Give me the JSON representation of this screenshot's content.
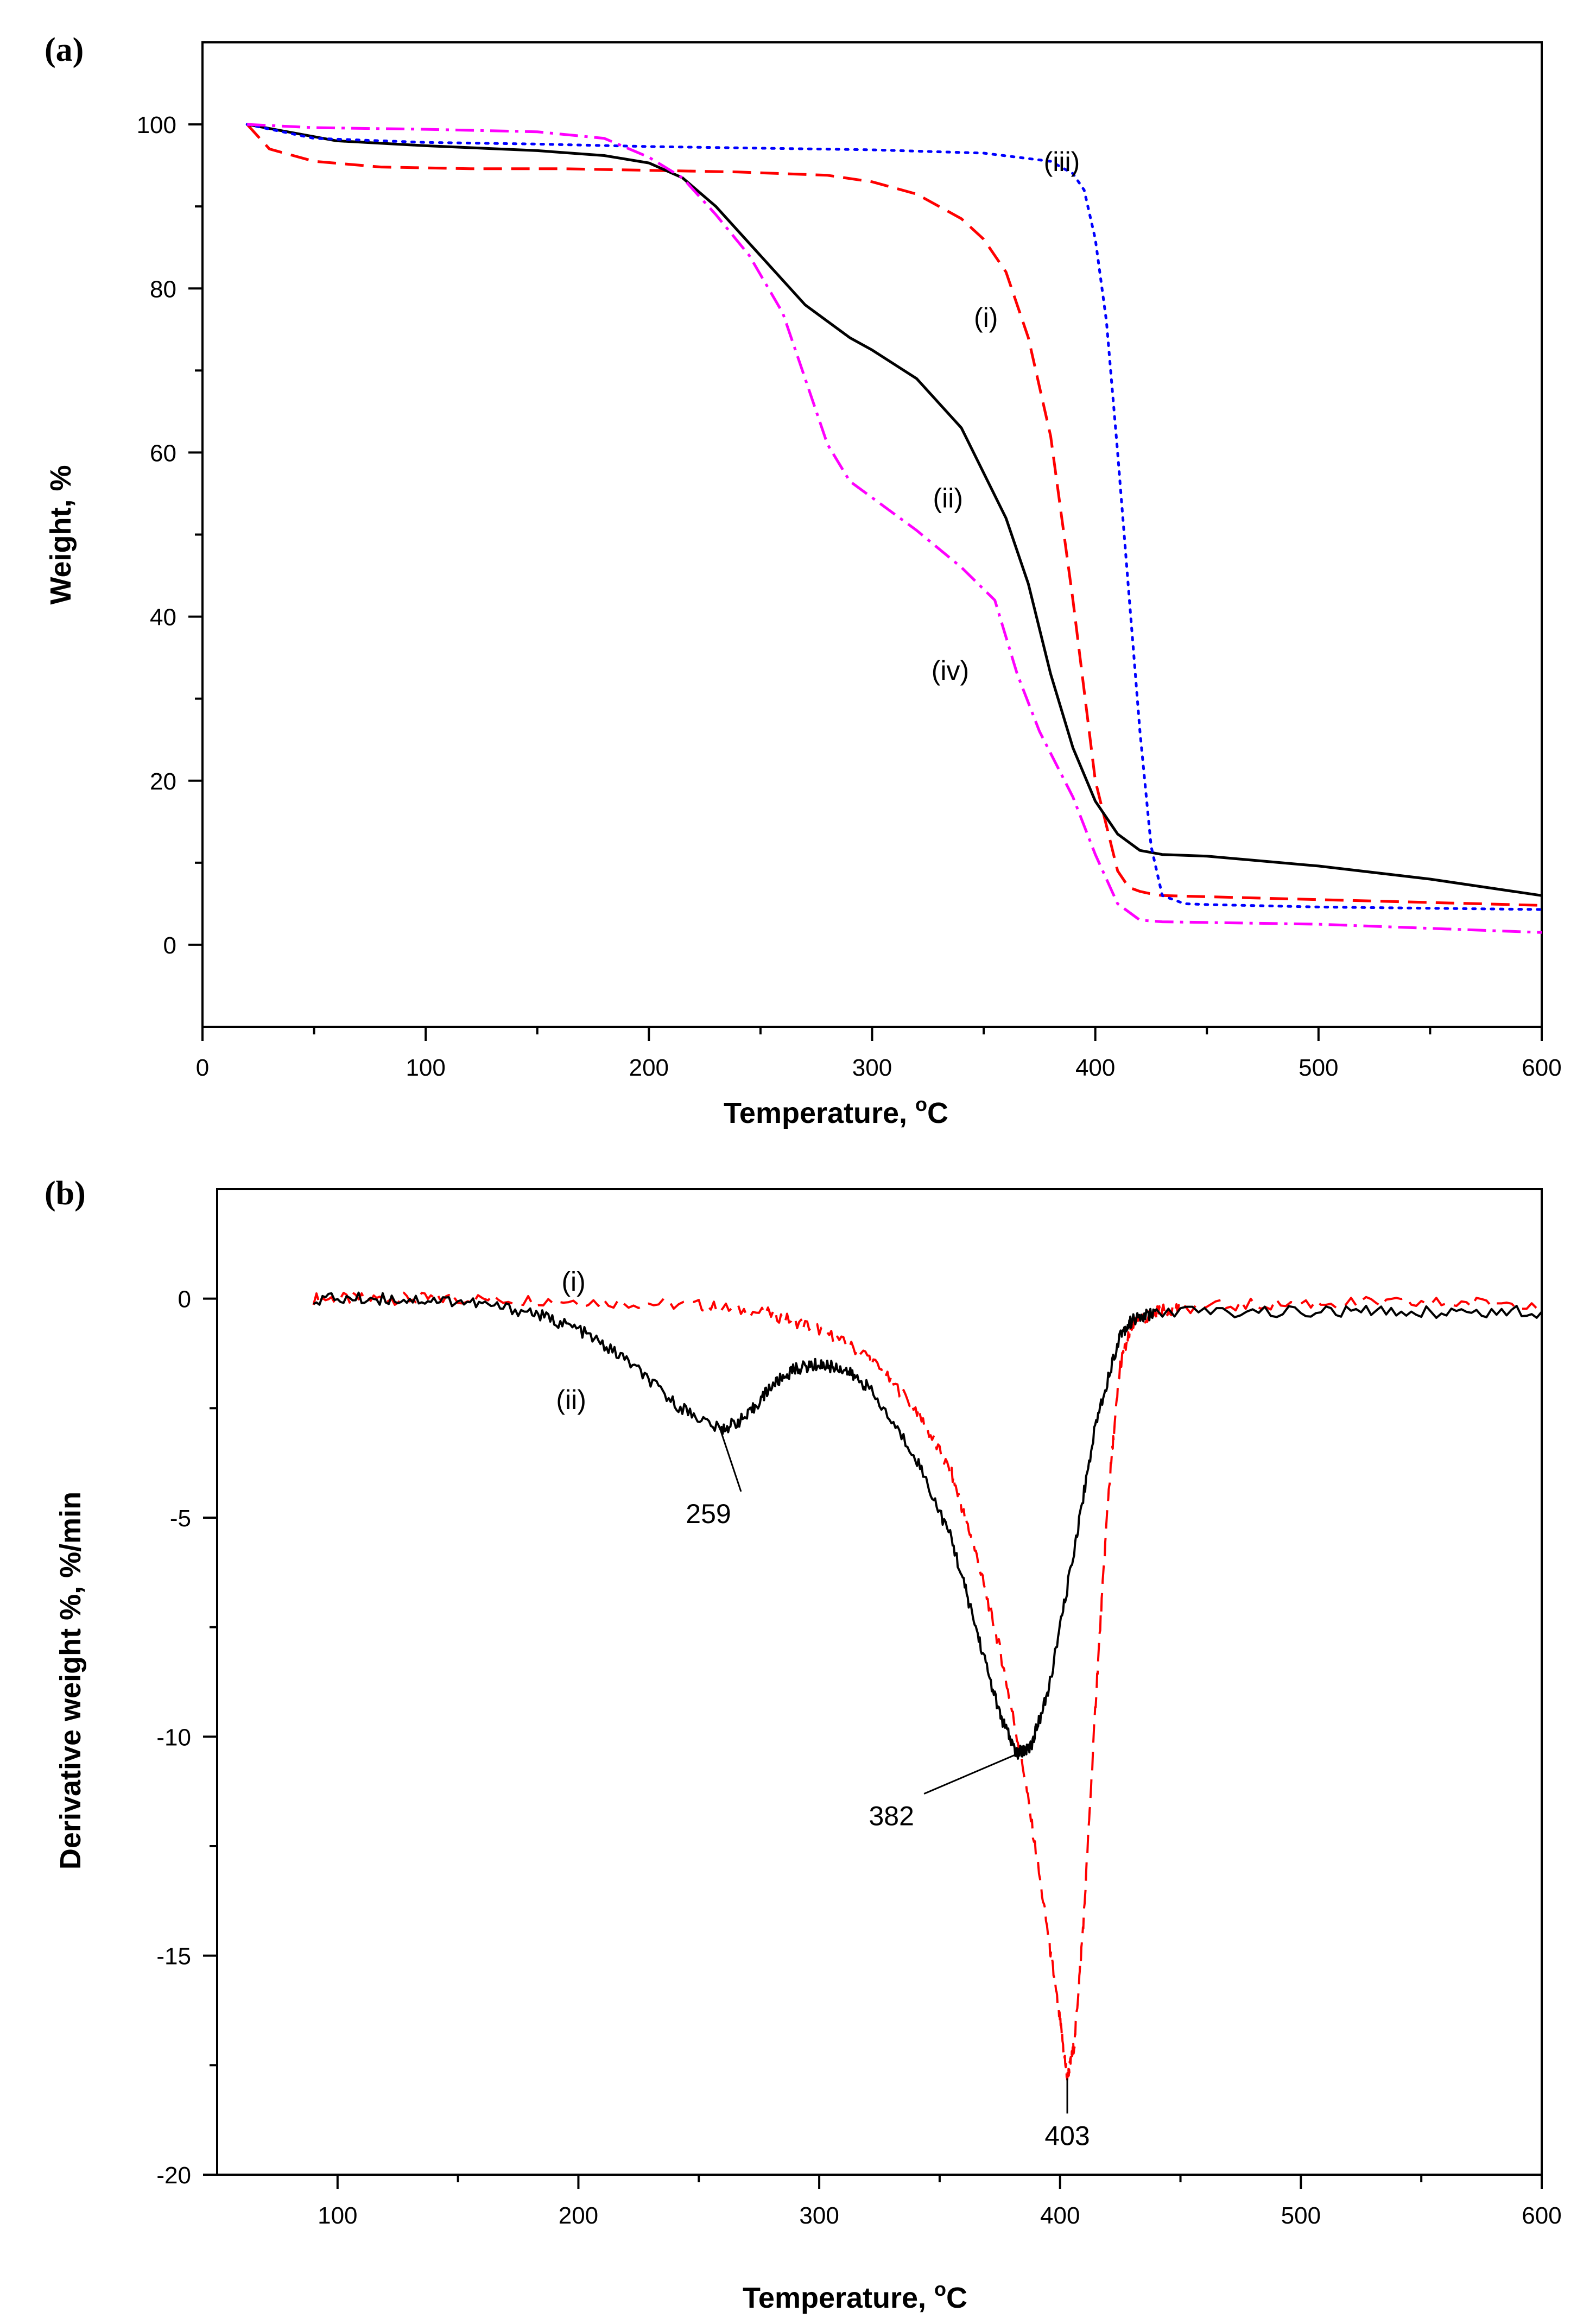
{
  "chart_data": [
    {
      "panel_label": "(a)",
      "type": "line",
      "xlabel": "Temperature, °C",
      "xlabel_main": "Temperature, ",
      "xlabel_sup": "o",
      "xlabel_unit": "C",
      "ylabel": "Weight, %",
      "xlim": [
        0,
        600
      ],
      "ylim": [
        -10,
        110
      ],
      "xticks": [
        "0",
        "100",
        "200",
        "300",
        "400",
        "500",
        "600"
      ],
      "yticks": [
        "0",
        "20",
        "40",
        "60",
        "80",
        "100"
      ],
      "grid": false,
      "series": [
        {
          "name": "(i)",
          "color": "#ff0000",
          "dash": "long-dash",
          "x": [
            20,
            30,
            50,
            80,
            120,
            160,
            200,
            240,
            280,
            300,
            320,
            340,
            350,
            360,
            370,
            380,
            390,
            400,
            410,
            415,
            420,
            425,
            430,
            500,
            600
          ],
          "y": [
            100,
            97,
            95.5,
            94.8,
            94.6,
            94.6,
            94.4,
            94.2,
            93.8,
            93,
            91.5,
            88.5,
            86,
            82,
            74,
            62,
            42,
            20,
            9,
            7,
            6.5,
            6.2,
            6,
            5.5,
            4.8
          ]
        },
        {
          "name": "(ii)",
          "color": "#000000",
          "dash": "solid",
          "x": [
            20,
            40,
            60,
            100,
            150,
            180,
            200,
            215,
            230,
            250,
            270,
            290,
            300,
            320,
            340,
            360,
            370,
            380,
            390,
            400,
            410,
            420,
            430,
            450,
            500,
            550,
            600
          ],
          "y": [
            100,
            99,
            98,
            97.4,
            96.8,
            96.2,
            95.3,
            93.5,
            90,
            84,
            78,
            74,
            72.5,
            69,
            63,
            52,
            44,
            33,
            24,
            17.5,
            13.5,
            11.5,
            11,
            10.8,
            9.6,
            8,
            6
          ]
        },
        {
          "name": "(iii)",
          "color": "#0000ff",
          "dash": "dotted",
          "x": [
            20,
            50,
            100,
            150,
            200,
            250,
            300,
            350,
            380,
            390,
            395,
            400,
            405,
            410,
            415,
            420,
            425,
            430,
            440,
            450,
            500,
            600
          ],
          "y": [
            100,
            98.3,
            97.8,
            97.6,
            97.3,
            97.1,
            96.9,
            96.5,
            95.5,
            94,
            92,
            86,
            76,
            60,
            43,
            26,
            12,
            6,
            5,
            4.9,
            4.6,
            4.3
          ]
        },
        {
          "name": "(iv)",
          "color": "#ff00ff",
          "dash": "dash-dot",
          "x": [
            20,
            50,
            100,
            150,
            180,
            200,
            215,
            230,
            245,
            260,
            270,
            280,
            290,
            300,
            320,
            340,
            355,
            365,
            375,
            390,
            400,
            410,
            420,
            430,
            500,
            600
          ],
          "y": [
            100,
            99.6,
            99.4,
            99.1,
            98.3,
            96,
            93.5,
            89,
            84,
            77,
            69,
            61,
            56.5,
            54.5,
            50.5,
            46,
            42,
            33,
            26,
            18,
            11,
            5,
            3,
            2.8,
            2.5,
            1.5
          ]
        }
      ],
      "annotations": [
        {
          "text": "(iii)",
          "x": 385,
          "y": 95.5
        },
        {
          "text": "(i)",
          "x": 351,
          "y": 76.5
        },
        {
          "text": "(ii)",
          "x": 334,
          "y": 54.5
        },
        {
          "text": "(iv)",
          "x": 335,
          "y": 33.5
        }
      ]
    },
    {
      "panel_label": "(b)",
      "type": "line",
      "xlabel": "Temperature, °C",
      "xlabel_main": "Temperature, ",
      "xlabel_sup": "o",
      "xlabel_unit": "C",
      "ylabel": "Derivative weight %, %/min",
      "xlim": [
        50,
        600
      ],
      "ylim": [
        -20,
        2.5
      ],
      "xticks": [
        "100",
        "200",
        "300",
        "400",
        "500",
        "600"
      ],
      "yticks": [
        "0",
        "-5",
        "-10",
        "-15",
        "-20"
      ],
      "grid": false,
      "series": [
        {
          "name": "(i)",
          "color": "#ff0000",
          "dash": "dashed-noisy",
          "x": [
            90,
            120,
            150,
            200,
            250,
            280,
            300,
            320,
            340,
            355,
            365,
            375,
            385,
            395,
            400,
            403,
            406,
            410,
            415,
            420,
            425,
            430,
            440,
            450,
            500,
            550,
            600
          ],
          "y": [
            0,
            0,
            0,
            -0.05,
            -0.15,
            -0.35,
            -0.7,
            -1.3,
            -2.5,
            -4,
            -5.8,
            -8,
            -10.8,
            -14.5,
            -16.5,
            -17.8,
            -17,
            -14,
            -9,
            -4.5,
            -1.5,
            -0.6,
            -0.3,
            -0.2,
            -0.1,
            -0.1,
            -0.1
          ]
        },
        {
          "name": "(ii)",
          "color": "#000000",
          "dash": "solid-noisy",
          "x": [
            90,
            120,
            150,
            180,
            200,
            220,
            240,
            259,
            270,
            280,
            290,
            300,
            310,
            320,
            340,
            355,
            365,
            375,
            382,
            388,
            395,
            405,
            415,
            425,
            430,
            440,
            500,
            550,
            600
          ],
          "y": [
            0,
            0,
            -0.05,
            -0.3,
            -0.7,
            -1.4,
            -2.4,
            -3,
            -2.7,
            -2,
            -1.6,
            -1.5,
            -1.6,
            -2,
            -3.6,
            -5.5,
            -7.5,
            -9.5,
            -10.4,
            -10.2,
            -9,
            -6,
            -2.8,
            -0.8,
            -0.5,
            -0.3,
            -0.3,
            -0.3,
            -0.3
          ]
        }
      ],
      "annotations": [
        {
          "text": "(i)",
          "x": 198,
          "y": 0.4
        },
        {
          "text": "(ii)",
          "x": 197,
          "y": -2.3
        },
        {
          "text": "259",
          "x": 259,
          "y": -3.0,
          "label_x": 254,
          "label_y": -4.9
        },
        {
          "text": "382",
          "x": 382,
          "y": -10.4,
          "label_x": 330,
          "label_y": -11.8
        },
        {
          "text": "403",
          "x": 403,
          "y": -17.8,
          "label_x": 403,
          "label_y": -19.1
        }
      ]
    }
  ]
}
